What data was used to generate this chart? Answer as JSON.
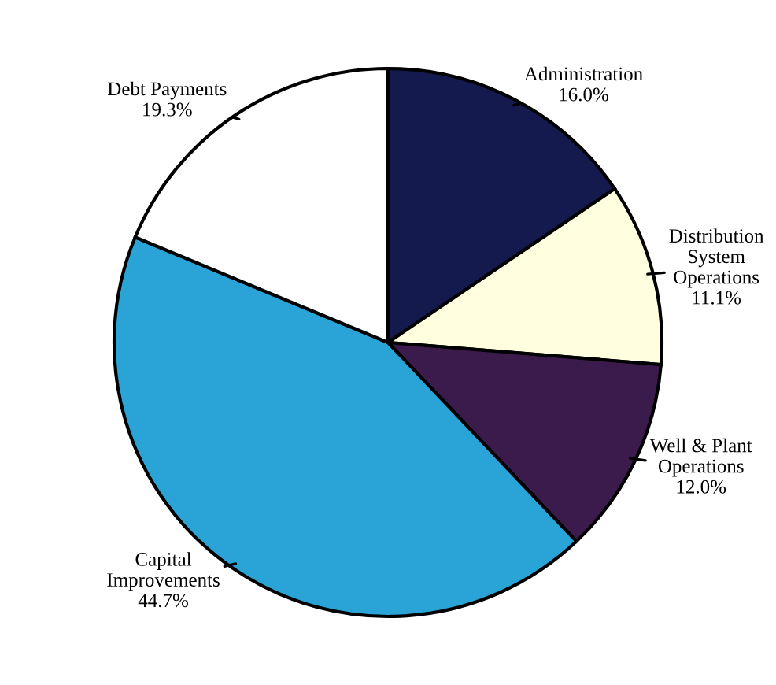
{
  "chart_data": {
    "type": "pie",
    "categories": [
      "Administration",
      "Distribution\nSystem\nOperations",
      "Well & Plant\nOperations",
      "Capital\nImprovements",
      "Debt Payments"
    ],
    "values": [
      16.0,
      11.1,
      12.0,
      44.7,
      19.3
    ],
    "colors": [
      "#151a4e",
      "#ffffe0",
      "#3b1a4c",
      "#2aa3d6",
      "#ffffff"
    ],
    "value_labels": [
      "16.0%",
      "11.1%",
      "12.0%",
      "44.7%",
      "19.3%"
    ]
  }
}
